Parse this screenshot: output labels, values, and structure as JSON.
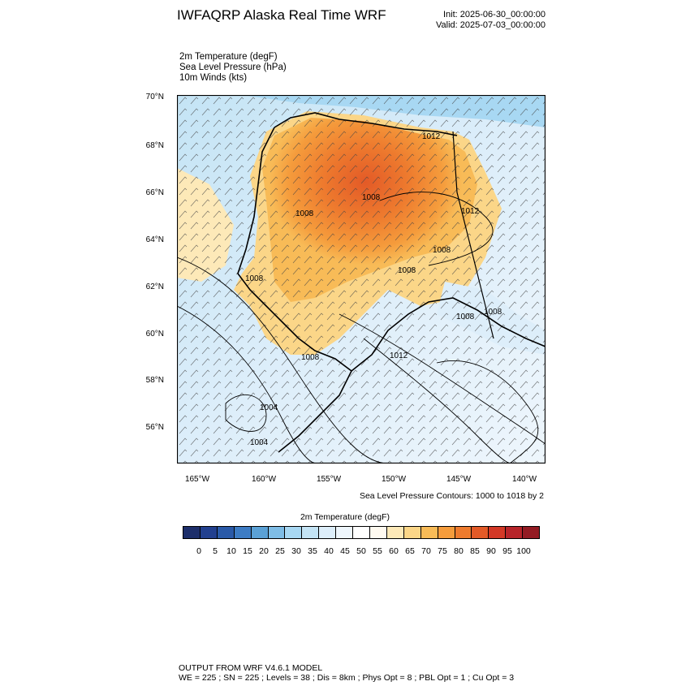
{
  "title": "IWFAQRP Alaska Real Time WRF",
  "init_time": "Init: 2025-06-30_00:00:00",
  "valid_time": "Valid: 2025-07-03_00:00:00",
  "fields": [
    "2m Temperature   (degF)",
    "Sea Level Pressure   (hPa)",
    "10m Winds   (kts)"
  ],
  "lat_ticks": [
    "70°N",
    "68°N",
    "66°N",
    "64°N",
    "62°N",
    "60°N",
    "58°N",
    "56°N"
  ],
  "lon_ticks": [
    "165°W",
    "160°W",
    "155°W",
    "150°W",
    "145°W",
    "140°W"
  ],
  "contour_note": "Sea Level Pressure Contours: 1000 to 1018 by 2",
  "colorbar": {
    "title": "2m Temperature  (degF)",
    "labels": [
      "0",
      "5",
      "10",
      "15",
      "20",
      "25",
      "30",
      "35",
      "40",
      "45",
      "50",
      "55",
      "60",
      "65",
      "70",
      "75",
      "80",
      "85",
      "90",
      "95",
      "100"
    ],
    "colors": [
      "#1d2f6b",
      "#22408f",
      "#2a5aa8",
      "#3d7cc4",
      "#5ba1d6",
      "#7fbde6",
      "#a8d8f3",
      "#c4e4f5",
      "#ddeefa",
      "#eef6fc",
      "#ffffff",
      "#fffaf0",
      "#fde9b8",
      "#fbd688",
      "#f8bb57",
      "#f59c3c",
      "#ee7b2e",
      "#e35a27",
      "#d33826",
      "#b7242a",
      "#931b23"
    ]
  },
  "pressure_labels": [
    "1012",
    "1008",
    "1012",
    "1008",
    "1008",
    "1008",
    "1008",
    "1008",
    "1008",
    "1008",
    "1004",
    "1004",
    "1012"
  ],
  "footer": [
    "OUTPUT FROM WRF V4.6.1 MODEL",
    "WE = 225 ; SN = 225 ; Levels = 38 ; Dis = 8km ; Phys Opt = 8 ; PBL Opt = 1 ; Cu Opt = 3"
  ]
}
